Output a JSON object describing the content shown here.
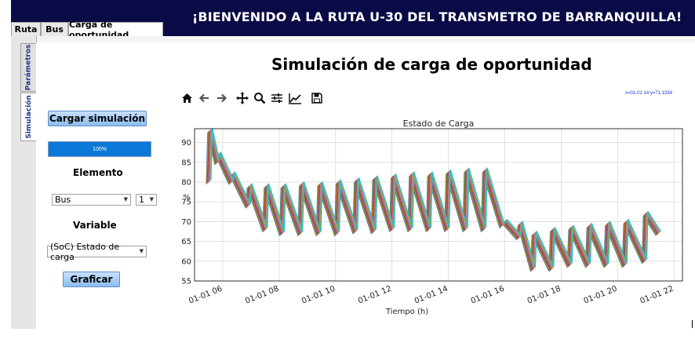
{
  "header": {
    "banner": "¡BIENVENIDO A LA RUTA U-30 DEL TRANSMETRO DE BARRANQUILLA!"
  },
  "tabs": [
    {
      "label": "Ruta",
      "active": false
    },
    {
      "label": "Bus",
      "active": false
    },
    {
      "label": "Carga de oportunidad",
      "active": true
    }
  ],
  "side_tabs": [
    {
      "label": "Parámetros",
      "active": false
    },
    {
      "label": "Simulación",
      "active": true
    }
  ],
  "main": {
    "title": "Simulación de carga de oportunidad",
    "load_button": "Cargar simulación",
    "progress": {
      "text": "100%",
      "value": 1.0
    },
    "element_label": "Elemento",
    "element_select": "Bus",
    "element_number": "1",
    "variable_label": "Variable",
    "variable_select": "(SoC) Estado de carga",
    "plot_button": "Graficar"
  },
  "toolbar": {
    "icons": [
      "home-icon",
      "back-arrow-icon",
      "forward-arrow-icon",
      "pan-icon",
      "zoom-icon",
      "configure-subplots-icon",
      "edit-axes-icon",
      "save-icon"
    ],
    "coords": "x=01-01 14 y=71.1334"
  },
  "colors": {
    "banner_bg": "#0a0a46",
    "accent_blue": "#0b78d8",
    "button_blue": "#8cbdf0"
  },
  "chart_data": {
    "type": "line",
    "title": "Estado de Carga",
    "xlabel": "Tiempo (h)",
    "ylabel": "%",
    "xlim": [
      5.0,
      22.3
    ],
    "ylim": [
      55,
      93.5
    ],
    "xticks": [
      6,
      8,
      10,
      12,
      14,
      16,
      18,
      20,
      22
    ],
    "xtick_labels": [
      "01-01 06",
      "01-01 08",
      "01-01 10",
      "01-01 12",
      "01-01 14",
      "01-01 16",
      "01-01 18",
      "01-01 20",
      "01-01 22"
    ],
    "yticks": [
      55,
      60,
      65,
      70,
      75,
      80,
      85,
      90
    ],
    "grid": true,
    "series_colors": [
      "#1f77b4",
      "#ff7f0e",
      "#2ca02c",
      "#d62728",
      "#9467bd",
      "#8c564b",
      "#e377c2",
      "#7f7f7f",
      "#bcbd22",
      "#17becf"
    ],
    "x": [
      5.5,
      5.55,
      5.8,
      5.85,
      6.3,
      6.35,
      6.9,
      6.95,
      7.5,
      7.55,
      8.1,
      8.15,
      8.75,
      8.8,
      9.4,
      9.45,
      10.05,
      10.1,
      10.7,
      10.75,
      11.35,
      11.4,
      12.0,
      12.05,
      12.65,
      12.7,
      13.3,
      13.35,
      13.95,
      14.0,
      14.6,
      14.65,
      15.25,
      15.3,
      15.9,
      16.0,
      16.5,
      16.55,
      17.0,
      17.05,
      17.65,
      17.7,
      18.3,
      18.35,
      18.95,
      19.0,
      19.6,
      19.65,
      20.25,
      20.3,
      20.95,
      21.0,
      21.45
    ],
    "values": [
      80,
      93,
      85,
      87,
      80,
      82,
      74,
      79,
      68,
      79,
      67,
      79,
      67,
      79.5,
      67,
      79.5,
      67,
      80,
      67.5,
      80.5,
      67.5,
      81,
      68,
      81.5,
      68,
      82,
      68,
      82,
      68,
      82.5,
      68,
      83,
      68,
      83,
      69,
      70,
      66,
      69.5,
      58,
      67,
      58,
      68,
      59,
      68.5,
      59,
      69,
      59,
      69.5,
      59,
      70,
      60,
      72,
      67
    ]
  }
}
